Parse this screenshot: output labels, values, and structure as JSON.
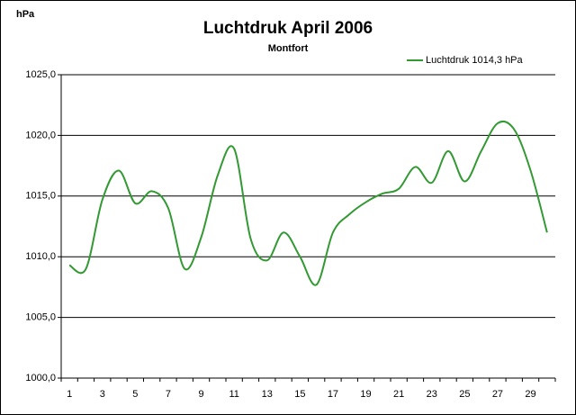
{
  "chart_data": {
    "type": "line",
    "title": "Luchtdruk April 2006",
    "subtitle": "Montfort",
    "ylabel": "hPa",
    "categories": [
      "1",
      null,
      "3",
      null,
      "5",
      null,
      "7",
      null,
      "9",
      null,
      "11",
      null,
      "13",
      null,
      "15",
      null,
      "17",
      null,
      "19",
      null,
      "21",
      null,
      "23",
      null,
      "25",
      null,
      "27",
      null,
      "29",
      null
    ],
    "series": [
      {
        "name": "Luchtdruk 1014,3 hPa",
        "color": "#339933",
        "values": [
          1009.3,
          1009.0,
          1014.7,
          1017.1,
          1014.4,
          1015.4,
          1014.0,
          1009.0,
          1011.6,
          1016.7,
          1018.9,
          1011.5,
          1009.7,
          1012.0,
          1010.0,
          1007.7,
          1012.0,
          1013.5,
          1014.5,
          1015.2,
          1015.6,
          1017.4,
          1016.1,
          1018.7,
          1016.2,
          1018.7,
          1021.0,
          1020.5,
          1017.1,
          1012.0
        ]
      }
    ],
    "ylim": [
      1000,
      1025
    ],
    "yticks": [
      {
        "value": 1000,
        "label": "1000,0"
      },
      {
        "value": 1005,
        "label": "1005,0"
      },
      {
        "value": 1010,
        "label": "1010,0"
      },
      {
        "value": 1015,
        "label": "1015,0"
      },
      {
        "value": 1020,
        "label": "1020,0"
      },
      {
        "value": 1025,
        "label": "1025,0"
      }
    ],
    "grid": true,
    "smooth": true,
    "legend": "top-right"
  }
}
